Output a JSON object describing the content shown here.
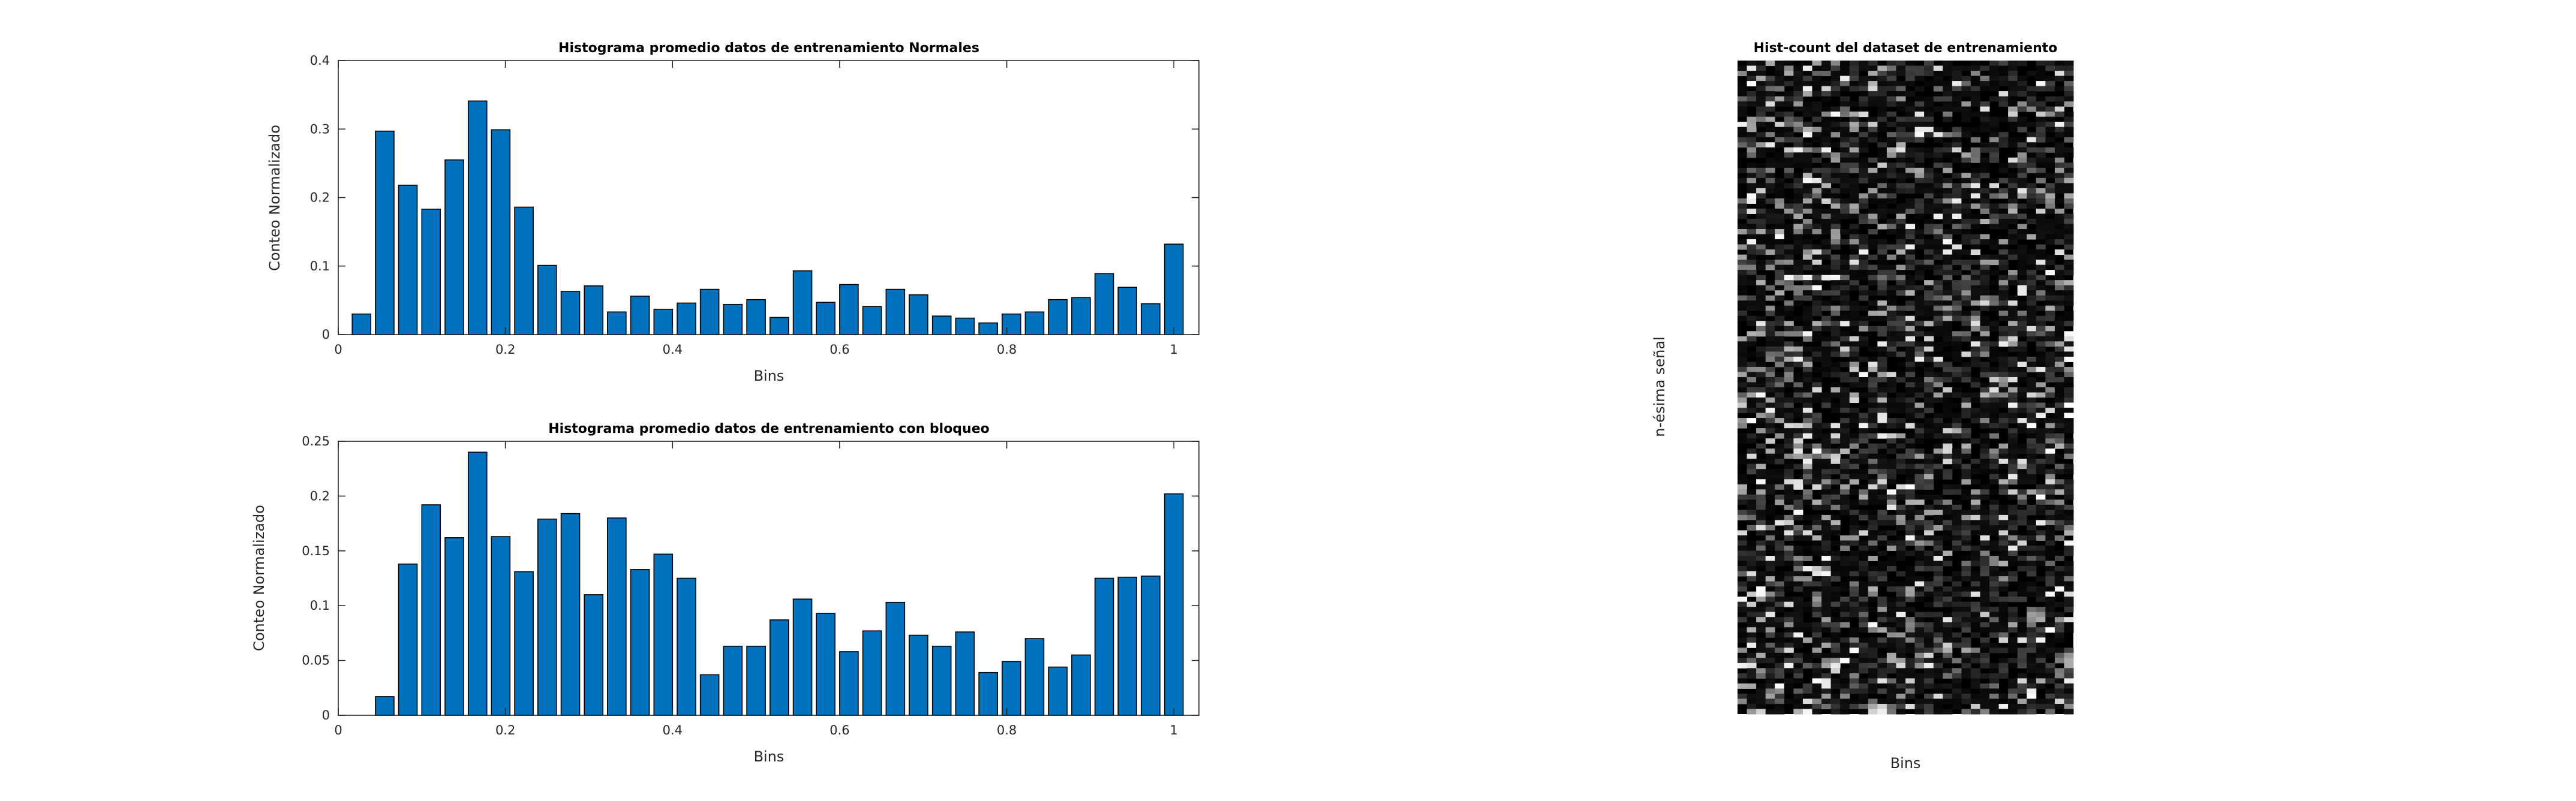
{
  "chart_data": [
    {
      "type": "bar",
      "title": "Histograma promedio datos de entrenamiento Normales",
      "xlabel": "Bins",
      "ylabel": "Conteo Normalizado",
      "xlim": [
        0,
        1.03
      ],
      "ylim": [
        0,
        0.4
      ],
      "xticks": [
        "0",
        "0.2",
        "0.4",
        "0.6",
        "0.8",
        "1"
      ],
      "yticks": [
        "0",
        "0.1",
        "0.2",
        "0.3",
        "0.4"
      ],
      "x": [
        0.0278,
        0.0556,
        0.0833,
        0.1111,
        0.1389,
        0.1667,
        0.1944,
        0.2222,
        0.25,
        0.2778,
        0.3056,
        0.3333,
        0.3611,
        0.3889,
        0.4167,
        0.4444,
        0.4722,
        0.5,
        0.5278,
        0.5556,
        0.5833,
        0.6111,
        0.6389,
        0.6667,
        0.6944,
        0.7222,
        0.75,
        0.7778,
        0.8056,
        0.8333,
        0.8611,
        0.8889,
        0.9167,
        0.9444,
        0.9722,
        1.0
      ],
      "values": [
        0.03,
        0.297,
        0.218,
        0.183,
        0.255,
        0.341,
        0.299,
        0.186,
        0.101,
        0.063,
        0.071,
        0.033,
        0.056,
        0.037,
        0.046,
        0.066,
        0.044,
        0.051,
        0.025,
        0.093,
        0.047,
        0.073,
        0.041,
        0.066,
        0.058,
        0.027,
        0.024,
        0.017,
        0.03,
        0.033,
        0.051,
        0.054,
        0.089,
        0.069,
        0.045,
        0.132
      ],
      "grid": false
    },
    {
      "type": "bar",
      "title": "Histograma promedio datos de entrenamiento con bloqueo",
      "xlabel": "Bins",
      "ylabel": "Conteo Normalizado",
      "xlim": [
        0,
        1.03
      ],
      "ylim": [
        0,
        0.25
      ],
      "xticks": [
        "0",
        "0.2",
        "0.4",
        "0.6",
        "0.8",
        "1"
      ],
      "yticks": [
        "0",
        "0.05",
        "0.1",
        "0.15",
        "0.2",
        "0.25"
      ],
      "x": [
        0.0278,
        0.0556,
        0.0833,
        0.1111,
        0.1389,
        0.1667,
        0.1944,
        0.2222,
        0.25,
        0.2778,
        0.3056,
        0.3333,
        0.3611,
        0.3889,
        0.4167,
        0.4444,
        0.4722,
        0.5,
        0.5278,
        0.5556,
        0.5833,
        0.6111,
        0.6389,
        0.6667,
        0.6944,
        0.7222,
        0.75,
        0.7778,
        0.8056,
        0.8333,
        0.8611,
        0.8889,
        0.9167,
        0.9444,
        0.9722,
        1.0
      ],
      "values": [
        0.0,
        0.017,
        0.138,
        0.192,
        0.162,
        0.24,
        0.163,
        0.131,
        0.179,
        0.184,
        0.11,
        0.18,
        0.133,
        0.147,
        0.125,
        0.037,
        0.063,
        0.063,
        0.087,
        0.106,
        0.093,
        0.058,
        0.077,
        0.103,
        0.073,
        0.063,
        0.076,
        0.039,
        0.049,
        0.07,
        0.044,
        0.055,
        0.125,
        0.126,
        0.127,
        0.202
      ],
      "grid": false
    },
    {
      "type": "heatmap",
      "title": "Hist-count del dataset de entrenamiento",
      "xlabel": "Bins",
      "ylabel": "n-ésima señal",
      "colormap": "gray",
      "columns": 36,
      "rows": 128,
      "xticks": [],
      "yticks": []
    }
  ]
}
